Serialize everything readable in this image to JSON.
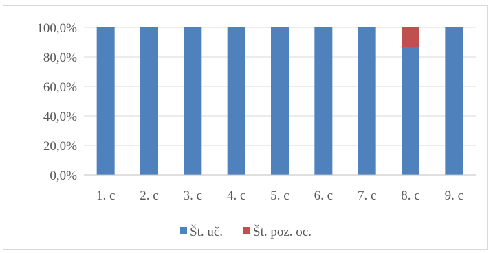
{
  "chart_data": {
    "type": "bar",
    "stacked": true,
    "title": "",
    "xlabel": "",
    "ylabel": "",
    "categories": [
      "1. c",
      "2. c",
      "3. c",
      "4. c",
      "5. c",
      "6. c",
      "7. c",
      "8. c",
      "9. c"
    ],
    "series": [
      {
        "name": "Št. uč.",
        "color": "#4f81bd",
        "values": [
          100,
          100,
          100,
          100,
          100,
          100,
          100,
          86.7,
          100
        ]
      },
      {
        "name": "Št. poz. oc.",
        "color": "#c0504d",
        "values": [
          0,
          0,
          0,
          0,
          0,
          0,
          0,
          13.3,
          0
        ]
      }
    ],
    "ylim": [
      0,
      100
    ],
    "yticks": [
      "0,0%",
      "20,0%",
      "40,0%",
      "60,0%",
      "80,0%",
      "100,0%"
    ],
    "grid": true,
    "legend_position": "bottom"
  }
}
